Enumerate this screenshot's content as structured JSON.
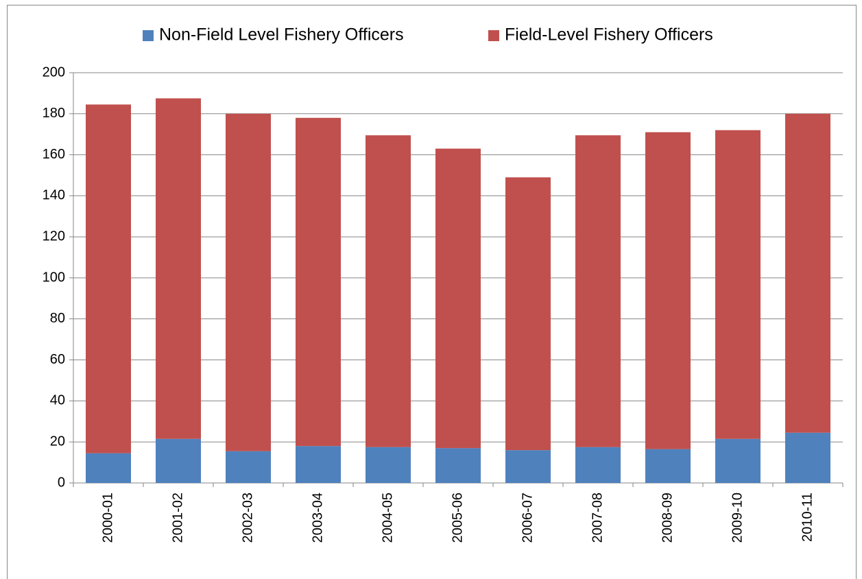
{
  "chart_data": {
    "type": "stacked-bar",
    "categories": [
      "2000-01",
      "2001-02",
      "2002-03",
      "2003-04",
      "2004-05",
      "2005-06",
      "2006-07",
      "2007-08",
      "2008-09",
      "2009-10",
      "2010-11"
    ],
    "series": [
      {
        "name": "Non-Field Level Fishery Officers",
        "color": "#4f81bd",
        "values": [
          14.5,
          21.5,
          15.5,
          18,
          17.5,
          17,
          16,
          17.5,
          16.5,
          21.5,
          24.5
        ]
      },
      {
        "name": "Field-Level Fishery Officers",
        "color": "#c0504d",
        "values": [
          170,
          166,
          164.5,
          160,
          152,
          146,
          133,
          152,
          154.5,
          150.5,
          155.5
        ]
      }
    ],
    "ylim": [
      0,
      200
    ],
    "yticks": [
      0,
      20,
      40,
      60,
      80,
      100,
      120,
      140,
      160,
      180,
      200
    ],
    "grid": true,
    "legend": "top"
  }
}
